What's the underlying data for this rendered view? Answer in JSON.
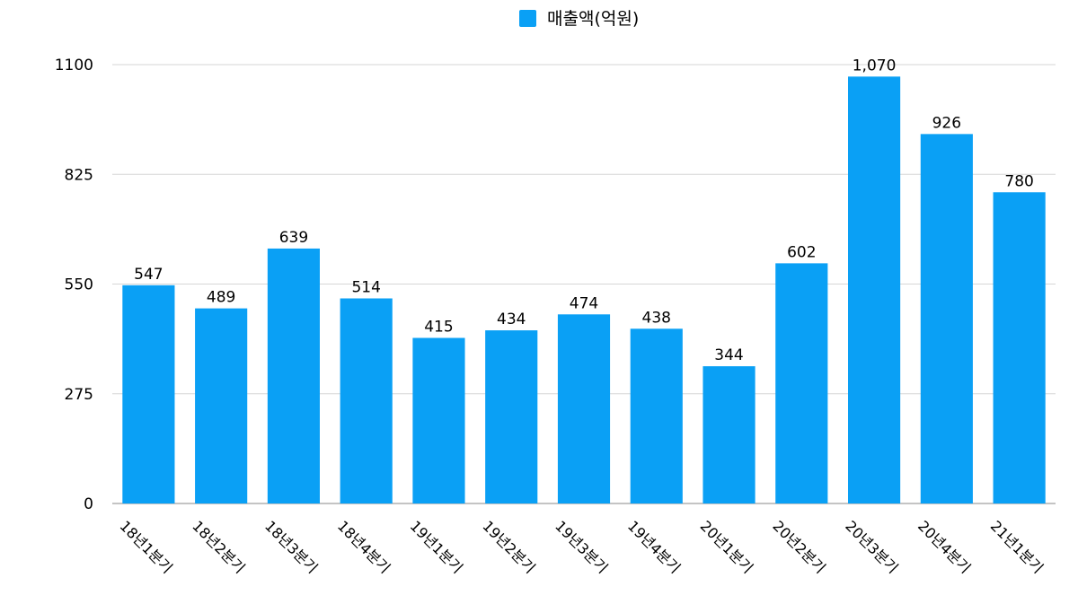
{
  "chart_data": {
    "type": "bar",
    "series": [
      {
        "name": "매출액(억원)",
        "color": "#0aa0f5",
        "values": [
          547,
          489,
          639,
          514,
          415,
          434,
          474,
          438,
          344,
          602,
          1070,
          926,
          780
        ],
        "value_labels": [
          "547",
          "489",
          "639",
          "514",
          "415",
          "434",
          "474",
          "438",
          "344",
          "602",
          "1,070",
          "926",
          "780"
        ]
      }
    ],
    "categories": [
      "18년1분기",
      "18년2분기",
      "18년3분기",
      "18년4분기",
      "19년1분기",
      "19년2분기",
      "19년3분기",
      "19년4분기",
      "20년1분기",
      "20년2분기",
      "20년3분기",
      "20년4분기",
      "21년1분기"
    ],
    "ylim": [
      0,
      1100
    ],
    "yticks": [
      0,
      275,
      550,
      825,
      1100
    ],
    "ytick_labels": [
      "0",
      "275",
      "550",
      "825",
      "1100"
    ],
    "grid": true,
    "legend_position": "top-center",
    "xlabel": "",
    "ylabel": "",
    "title": ""
  }
}
